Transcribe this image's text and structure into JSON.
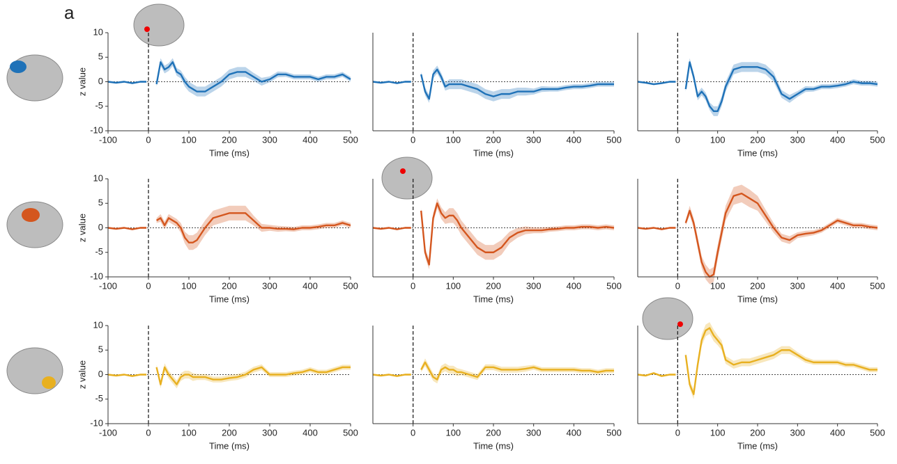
{
  "panel_label": "a",
  "chart_data": [
    {
      "type": "line",
      "color": "#1f72b8",
      "x_label": "Time (ms)",
      "y_label": "z value",
      "x": [
        -100,
        -80,
        -60,
        -40,
        -20,
        -5,
        10,
        20,
        30,
        40,
        50,
        60,
        70,
        80,
        90,
        100,
        110,
        120,
        140,
        160,
        180,
        200,
        220,
        240,
        260,
        280,
        300,
        320,
        340,
        360,
        380,
        400,
        420,
        440,
        460,
        480,
        500
      ],
      "values": [
        0,
        -0.2,
        0,
        -0.3,
        0,
        0,
        null,
        -0.5,
        4,
        2.5,
        3,
        4,
        2,
        1.5,
        0,
        -1,
        -1.5,
        -2,
        -2,
        -1,
        0,
        1.5,
        2,
        2,
        1,
        0,
        0.5,
        1.5,
        1.5,
        1,
        1,
        1,
        0.5,
        1,
        1,
        1.5,
        0.5
      ],
      "errors": [
        0.2,
        0.2,
        0.2,
        0.2,
        0.2,
        0.2,
        null,
        0.5,
        0.8,
        0.8,
        0.8,
        0.8,
        0.8,
        0.8,
        1,
        1,
        1,
        1,
        1,
        1,
        1,
        1,
        1,
        1,
        0.8,
        0.8,
        0.6,
        0.6,
        0.5,
        0.5,
        0.5,
        0.5,
        0.5,
        0.5,
        0.5,
        0.5,
        0.5
      ],
      "xlim": [
        -100,
        500
      ],
      "xticks": [
        -100,
        0,
        100,
        200,
        300,
        400,
        500
      ],
      "ylim": [
        -10,
        10
      ],
      "yticks": [
        -10,
        -5,
        0,
        5,
        10
      ],
      "vline": 0,
      "hline": 0
    },
    {
      "type": "line",
      "color": "#1f72b8",
      "x_label": "Time (ms)",
      "x": [
        -100,
        -80,
        -60,
        -40,
        -20,
        -5,
        10,
        20,
        30,
        40,
        50,
        60,
        70,
        80,
        90,
        100,
        110,
        120,
        140,
        160,
        180,
        200,
        220,
        240,
        260,
        280,
        300,
        320,
        340,
        360,
        380,
        400,
        420,
        440,
        460,
        480,
        500
      ],
      "values": [
        0,
        -0.2,
        0,
        -0.3,
        0,
        0,
        null,
        1.5,
        -2,
        -3.5,
        1.5,
        2.5,
        1,
        -1,
        -0.5,
        -0.5,
        -0.5,
        -0.5,
        -1,
        -1.5,
        -2.5,
        -3,
        -2.5,
        -2.5,
        -2,
        -2,
        -2,
        -1.5,
        -1.5,
        -1.5,
        -1.2,
        -1,
        -1,
        -0.8,
        -0.5,
        -0.5,
        -0.5
      ],
      "errors": [
        0.2,
        0.2,
        0.2,
        0.2,
        0.2,
        0.2,
        null,
        0.5,
        0.8,
        0.8,
        0.8,
        0.8,
        0.8,
        0.8,
        1,
        1,
        1,
        1,
        1,
        1,
        1,
        1,
        1,
        1,
        0.8,
        0.8,
        0.6,
        0.6,
        0.5,
        0.5,
        0.5,
        0.5,
        0.5,
        0.5,
        0.5,
        0.5,
        0.5
      ],
      "xlim": [
        -100,
        500
      ],
      "xticks": [
        0,
        100,
        200,
        300,
        400,
        500
      ],
      "ylim": [
        -10,
        10
      ],
      "vline": 0,
      "hline": 0
    },
    {
      "type": "line",
      "color": "#1f72b8",
      "x_label": "Time (ms)",
      "x": [
        -100,
        -80,
        -60,
        -40,
        -20,
        -5,
        10,
        20,
        30,
        40,
        50,
        60,
        70,
        80,
        90,
        100,
        110,
        120,
        140,
        160,
        180,
        200,
        220,
        240,
        260,
        280,
        300,
        320,
        340,
        360,
        380,
        400,
        420,
        440,
        460,
        480,
        500
      ],
      "values": [
        0,
        -0.2,
        -0.5,
        -0.3,
        0,
        0,
        null,
        -1.5,
        4,
        1,
        -3,
        -2,
        -3,
        -5,
        -6,
        -6,
        -4,
        -1,
        2.5,
        3,
        3,
        3,
        2.5,
        1,
        -2.5,
        -3.5,
        -2.5,
        -1.5,
        -1.5,
        -1,
        -1,
        -0.8,
        -0.5,
        0,
        -0.3,
        -0.3,
        -0.5
      ],
      "errors": [
        0.2,
        0.2,
        0.2,
        0.2,
        0.2,
        0.2,
        null,
        0.5,
        0.8,
        0.8,
        0.8,
        0.8,
        0.8,
        0.8,
        1,
        1,
        1,
        1,
        1,
        1,
        1,
        1,
        1,
        1,
        0.8,
        0.8,
        0.6,
        0.6,
        0.5,
        0.5,
        0.5,
        0.5,
        0.5,
        0.5,
        0.5,
        0.5,
        0.5
      ],
      "xlim": [
        -100,
        500
      ],
      "xticks": [
        0,
        100,
        200,
        300,
        400,
        500
      ],
      "ylim": [
        -10,
        10
      ],
      "vline": 0,
      "hline": 0
    },
    {
      "type": "line",
      "color": "#d4561e",
      "x_label": "Time (ms)",
      "y_label": "z value",
      "x": [
        -100,
        -80,
        -60,
        -40,
        -20,
        -5,
        10,
        20,
        30,
        40,
        50,
        60,
        70,
        80,
        90,
        100,
        110,
        120,
        140,
        160,
        180,
        200,
        220,
        240,
        260,
        280,
        300,
        320,
        340,
        360,
        380,
        400,
        420,
        440,
        460,
        480,
        500
      ],
      "values": [
        0,
        -0.2,
        0,
        -0.3,
        0,
        0,
        null,
        1.5,
        2,
        0.5,
        2,
        1.5,
        1,
        0,
        -2,
        -3,
        -3,
        -2.5,
        0,
        2,
        2.5,
        3,
        3,
        3,
        1.5,
        0,
        0,
        -0.2,
        -0.2,
        -0.3,
        0,
        0,
        0.2,
        0.5,
        0.5,
        1,
        0.5
      ],
      "errors": [
        0.2,
        0.2,
        0.2,
        0.2,
        0.2,
        0.2,
        null,
        0.5,
        0.8,
        0.8,
        0.8,
        0.8,
        0.8,
        1,
        1.2,
        1.5,
        1.5,
        1.5,
        1.5,
        1.5,
        1.5,
        1.5,
        1.5,
        1.5,
        1,
        0.8,
        0.6,
        0.6,
        0.5,
        0.5,
        0.5,
        0.5,
        0.5,
        0.5,
        0.5,
        0.5,
        0.5
      ],
      "xlim": [
        -100,
        500
      ],
      "xticks": [
        -100,
        0,
        100,
        200,
        300,
        400,
        500
      ],
      "ylim": [
        -10,
        10
      ],
      "yticks": [
        -10,
        -5,
        0,
        5,
        10
      ],
      "vline": 0,
      "hline": 0
    },
    {
      "type": "line",
      "color": "#d4561e",
      "x_label": "Time (ms)",
      "x": [
        -100,
        -80,
        -60,
        -40,
        -20,
        -5,
        10,
        20,
        30,
        40,
        50,
        60,
        70,
        80,
        90,
        100,
        110,
        120,
        140,
        160,
        180,
        200,
        220,
        240,
        260,
        280,
        300,
        320,
        340,
        360,
        380,
        400,
        420,
        440,
        460,
        480,
        500
      ],
      "values": [
        0,
        -0.2,
        0,
        -0.3,
        0,
        0,
        null,
        3.5,
        -5,
        -7.5,
        2,
        5,
        3,
        2,
        2.5,
        2.5,
        1.5,
        0,
        -2,
        -4,
        -5,
        -5,
        -4,
        -2,
        -1,
        -0.5,
        -0.5,
        -0.5,
        -0.3,
        -0.2,
        0,
        0,
        0.2,
        0.2,
        0,
        0.2,
        0
      ],
      "errors": [
        0.2,
        0.2,
        0.2,
        0.2,
        0.2,
        0.2,
        null,
        0.5,
        1,
        1,
        1,
        1,
        1.2,
        1.2,
        1.5,
        1.5,
        1.5,
        1.5,
        1.5,
        1.5,
        1.5,
        1.5,
        1.5,
        1.2,
        1,
        0.8,
        0.6,
        0.6,
        0.5,
        0.5,
        0.5,
        0.5,
        0.5,
        0.5,
        0.5,
        0.5,
        0.5
      ],
      "xlim": [
        -100,
        500
      ],
      "xticks": [
        0,
        100,
        200,
        300,
        400,
        500
      ],
      "ylim": [
        -10,
        10
      ],
      "vline": 0,
      "hline": 0
    },
    {
      "type": "line",
      "color": "#d4561e",
      "x_label": "Time (ms)",
      "x": [
        -100,
        -80,
        -60,
        -40,
        -20,
        -5,
        10,
        20,
        30,
        40,
        50,
        60,
        70,
        80,
        90,
        100,
        110,
        120,
        140,
        160,
        180,
        200,
        220,
        240,
        260,
        280,
        300,
        320,
        340,
        360,
        380,
        400,
        420,
        440,
        460,
        480,
        500
      ],
      "values": [
        0,
        -0.2,
        0,
        -0.3,
        0,
        0,
        null,
        1,
        3.5,
        1,
        -3,
        -7,
        -9,
        -10,
        -9.5,
        -5,
        -1,
        3,
        6.5,
        7,
        6,
        5,
        2.5,
        0,
        -2,
        -2.5,
        -1.5,
        -1.2,
        -1,
        -0.5,
        0.5,
        1.5,
        1,
        0.5,
        0.5,
        0.2,
        0
      ],
      "errors": [
        0.2,
        0.2,
        0.2,
        0.2,
        0.2,
        0.2,
        null,
        0.5,
        1,
        1,
        1.2,
        1.2,
        1.5,
        1.5,
        1.5,
        1.5,
        1.5,
        1.5,
        1.8,
        1.8,
        1.8,
        1.5,
        1.2,
        1,
        0.8,
        0.8,
        0.6,
        0.6,
        0.5,
        0.5,
        0.5,
        0.5,
        0.5,
        0.5,
        0.5,
        0.5,
        0.5
      ],
      "xlim": [
        -100,
        500
      ],
      "xticks": [
        0,
        100,
        200,
        300,
        400,
        500
      ],
      "ylim": [
        -10,
        10
      ],
      "vline": 0,
      "hline": 0
    },
    {
      "type": "line",
      "color": "#e8b020",
      "x_label": "Time (ms)",
      "y_label": "z value",
      "x": [
        -100,
        -80,
        -60,
        -40,
        -20,
        -5,
        10,
        20,
        30,
        40,
        50,
        60,
        70,
        80,
        90,
        100,
        110,
        120,
        140,
        160,
        180,
        200,
        220,
        240,
        260,
        280,
        300,
        320,
        340,
        360,
        380,
        400,
        420,
        440,
        460,
        480,
        500
      ],
      "values": [
        0,
        -0.2,
        0,
        -0.3,
        0,
        0,
        null,
        1.5,
        -2,
        1.5,
        0,
        -1,
        -2,
        -0.5,
        0,
        0,
        -0.5,
        -0.5,
        -0.5,
        -1,
        -1,
        -0.7,
        -0.5,
        0,
        1,
        1.5,
        0,
        0,
        0,
        0.3,
        0.5,
        1,
        0.5,
        0.5,
        1,
        1.5,
        1.5
      ],
      "errors": [
        0.2,
        0.2,
        0.2,
        0.2,
        0.2,
        0.2,
        null,
        0.5,
        0.8,
        0.8,
        0.8,
        0.8,
        0.8,
        0.8,
        0.8,
        0.8,
        0.8,
        0.6,
        0.6,
        0.6,
        0.6,
        0.6,
        0.6,
        0.6,
        0.6,
        0.6,
        0.5,
        0.5,
        0.5,
        0.5,
        0.5,
        0.5,
        0.5,
        0.5,
        0.5,
        0.5,
        0.5
      ],
      "xlim": [
        -100,
        500
      ],
      "xticks": [
        -100,
        0,
        100,
        200,
        300,
        400,
        500
      ],
      "ylim": [
        -10,
        10
      ],
      "yticks": [
        -10,
        -5,
        0,
        5,
        10
      ],
      "vline": 0,
      "hline": 0
    },
    {
      "type": "line",
      "color": "#e8b020",
      "x_label": "Time (ms)",
      "x": [
        -100,
        -80,
        -60,
        -40,
        -20,
        -5,
        10,
        20,
        30,
        40,
        50,
        60,
        70,
        80,
        90,
        100,
        110,
        120,
        140,
        160,
        180,
        200,
        220,
        240,
        260,
        280,
        300,
        320,
        340,
        360,
        380,
        400,
        420,
        440,
        460,
        480,
        500
      ],
      "values": [
        0,
        -0.2,
        0,
        -0.3,
        0,
        0,
        null,
        1,
        2.5,
        1,
        -0.5,
        -1,
        1,
        1.5,
        1,
        1,
        0.5,
        0.5,
        0,
        -0.5,
        1.5,
        1.5,
        1,
        1,
        1,
        1.2,
        1.5,
        1,
        1,
        1,
        1,
        1,
        0.8,
        0.8,
        0.5,
        0.8,
        0.8
      ],
      "errors": [
        0.2,
        0.2,
        0.2,
        0.2,
        0.2,
        0.2,
        null,
        0.5,
        0.8,
        0.8,
        0.8,
        0.8,
        0.8,
        0.8,
        0.8,
        0.8,
        0.8,
        0.6,
        0.6,
        0.6,
        0.6,
        0.6,
        0.6,
        0.6,
        0.6,
        0.6,
        0.5,
        0.5,
        0.5,
        0.5,
        0.5,
        0.5,
        0.5,
        0.5,
        0.5,
        0.5,
        0.5
      ],
      "xlim": [
        -100,
        500
      ],
      "xticks": [
        0,
        100,
        200,
        300,
        400,
        500
      ],
      "ylim": [
        -10,
        10
      ],
      "vline": 0,
      "hline": 0
    },
    {
      "type": "line",
      "color": "#e8b020",
      "x_label": "Time (ms)",
      "x": [
        -100,
        -80,
        -60,
        -40,
        -20,
        -5,
        10,
        20,
        30,
        40,
        50,
        60,
        70,
        80,
        90,
        100,
        110,
        120,
        140,
        160,
        180,
        200,
        220,
        240,
        260,
        280,
        300,
        320,
        340,
        360,
        380,
        400,
        420,
        440,
        460,
        480,
        500
      ],
      "values": [
        0,
        -0.2,
        0.3,
        -0.3,
        0,
        0,
        null,
        4,
        -2,
        -4,
        2,
        7,
        9,
        9.5,
        8,
        7,
        6,
        3,
        2,
        2.5,
        2.5,
        3,
        3.5,
        4,
        5,
        5,
        4,
        3,
        2.5,
        2.5,
        2.5,
        2.5,
        2,
        2,
        1.5,
        1,
        1
      ],
      "errors": [
        0.2,
        0.2,
        0.2,
        0.2,
        0.2,
        0.2,
        null,
        0.5,
        0.8,
        1,
        1,
        1.2,
        1.2,
        1.2,
        1.2,
        1,
        1,
        0.8,
        0.8,
        0.8,
        0.8,
        0.8,
        0.8,
        0.8,
        0.8,
        0.8,
        0.6,
        0.6,
        0.5,
        0.5,
        0.5,
        0.5,
        0.5,
        0.5,
        0.5,
        0.5,
        0.5
      ],
      "xlim": [
        -100,
        500
      ],
      "xticks": [
        0,
        100,
        200,
        300,
        400,
        500
      ],
      "ylim": [
        -10,
        10
      ],
      "vline": 0,
      "hline": 0
    }
  ]
}
